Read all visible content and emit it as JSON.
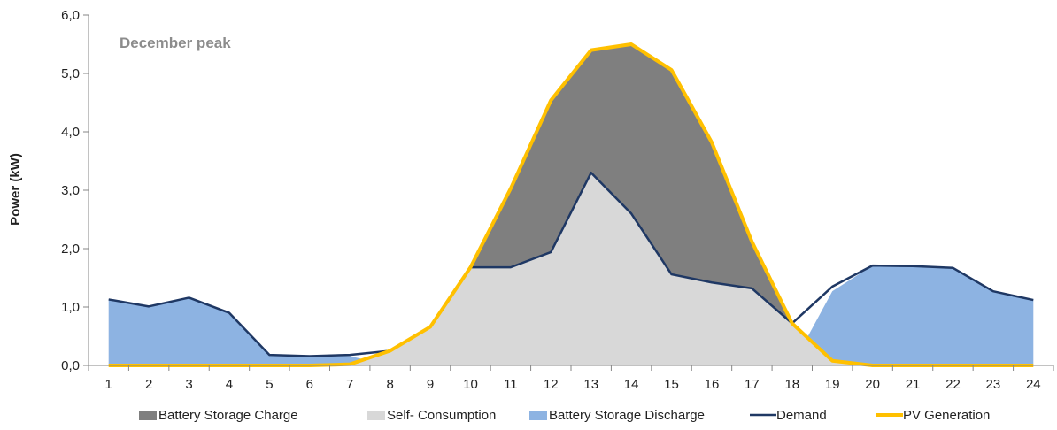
{
  "chart_data": {
    "type": "area",
    "annotation": "December peak",
    "ylabel": "Power (kW)",
    "xlabel": "",
    "x": [
      1,
      2,
      3,
      4,
      5,
      6,
      7,
      8,
      9,
      10,
      11,
      12,
      13,
      14,
      15,
      16,
      17,
      18,
      19,
      20,
      21,
      22,
      23,
      24
    ],
    "x_tick_labels": [
      "1",
      "2",
      "3",
      "4",
      "5",
      "6",
      "7",
      "8",
      "9",
      "10",
      "11",
      "12",
      "13",
      "14",
      "15",
      "16",
      "17",
      "18",
      "19",
      "20",
      "21",
      "22",
      "23",
      "24"
    ],
    "ylim": [
      0,
      6
    ],
    "y_ticks": [
      0,
      1,
      2,
      3,
      4,
      5,
      6
    ],
    "y_tick_labels": [
      "0,0",
      "1,0",
      "2,0",
      "3,0",
      "4,0",
      "5,0",
      "6,0"
    ],
    "grid": false,
    "legend_position": "bottom",
    "series": [
      {
        "name": "Battery Storage Charge",
        "kind": "area",
        "color": "#7f7f7f",
        "values": [
          0,
          0,
          0,
          0,
          0,
          0,
          0,
          0,
          0,
          0,
          1.35,
          2.6,
          2.1,
          2.9,
          3.5,
          2.4,
          0.8,
          0,
          0,
          0,
          0,
          0,
          0,
          0
        ]
      },
      {
        "name": "Self- Consumption",
        "kind": "area",
        "color": "#d8d8d8",
        "values": [
          0,
          0,
          0,
          0,
          0,
          0,
          0.02,
          0.25,
          0.66,
          1.68,
          1.68,
          1.94,
          3.3,
          2.6,
          1.56,
          1.42,
          1.32,
          0.72,
          0.08,
          0,
          0,
          0,
          0,
          0
        ]
      },
      {
        "name": "Battery Storage Discharge",
        "kind": "area",
        "color": "#8db3e2",
        "values": [
          1.13,
          1.01,
          1.16,
          0.9,
          0.18,
          0.16,
          0.16,
          0,
          0,
          0,
          0,
          0,
          0,
          0,
          0,
          0,
          0,
          0,
          1.27,
          1.71,
          1.7,
          1.67,
          1.27,
          1.12
        ]
      },
      {
        "name": "Demand",
        "kind": "line",
        "color": "#1f3864",
        "values": [
          1.13,
          1.01,
          1.16,
          0.9,
          0.18,
          0.16,
          0.18,
          0.25,
          0.66,
          1.68,
          1.68,
          1.94,
          3.3,
          2.6,
          1.56,
          1.42,
          1.32,
          0.72,
          1.35,
          1.71,
          1.7,
          1.67,
          1.27,
          1.12
        ]
      },
      {
        "name": "PV Generation",
        "kind": "line",
        "color": "#ffc000",
        "values": [
          0,
          0,
          0,
          0,
          0,
          0,
          0.02,
          0.25,
          0.66,
          1.68,
          3.03,
          4.54,
          5.4,
          5.5,
          5.06,
          3.82,
          2.12,
          0.72,
          0.08,
          0,
          0,
          0,
          0,
          0
        ]
      }
    ]
  }
}
